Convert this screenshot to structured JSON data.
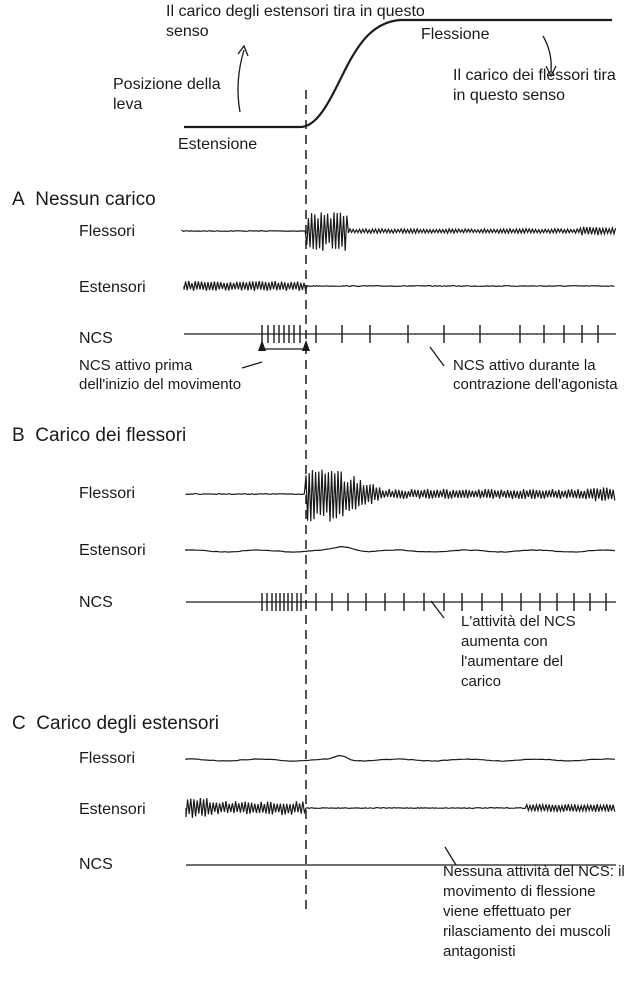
{
  "top": {
    "extensor_load_note": "Il carico degli estensori tira in questo senso",
    "flexion": "Flessione",
    "flexor_load_note": "Il carico dei flessori tira in questo senso",
    "lever_position": "Posizione della leva",
    "extension": "Estensione"
  },
  "panels": [
    {
      "letter": "A",
      "title": "Nessun carico",
      "traces": {
        "flexors": "Flessori",
        "extensors": "Estensori",
        "ncs": "NCS"
      },
      "annotations": [
        "NCS attivo prima dell'inizio del movimento",
        "NCS attivo durante la contrazione dell'agonista"
      ]
    },
    {
      "letter": "B",
      "title": "Carico dei flessori",
      "traces": {
        "flexors": "Flessori",
        "extensors": "Estensori",
        "ncs": "NCS"
      },
      "annotations": [
        "L'attività del NCS aumenta con l'aumentare del carico"
      ]
    },
    {
      "letter": "C",
      "title": "Carico degli estensori",
      "traces": {
        "flexors": "Flessori",
        "extensors": "Estensori",
        "ncs": "NCS"
      },
      "annotations": [
        "Nessuna attività del NCS: il movimento di flessione viene effettuato per rilasciamento dei muscoli antagonisti"
      ]
    }
  ]
}
